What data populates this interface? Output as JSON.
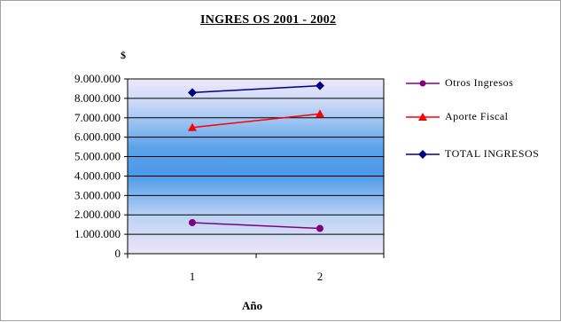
{
  "chart_data": {
    "type": "line",
    "title": "INGRES OS  2001 - 2002",
    "xlabel": "Año",
    "ylabel": "$",
    "categories": [
      "1",
      "2"
    ],
    "y_tick_labels": [
      "0",
      "1.000.000",
      "2.000.000",
      "3.000.000",
      "4.000.000",
      "5.000.000",
      "6.000.000",
      "7.000.000",
      "8.000.000",
      "9.000.000"
    ],
    "ylim": [
      0,
      9000000
    ],
    "y_tick_step": 1000000,
    "grid": true,
    "legend_position": "right",
    "series": [
      {
        "name": "Otros Ingresos",
        "values": [
          1600000,
          1300000
        ],
        "color": "#800080",
        "marker": "circle"
      },
      {
        "name": "Aporte Fiscal",
        "values": [
          6500000,
          7200000
        ],
        "color": "#ff0000",
        "marker": "triangle"
      },
      {
        "name": "TOTAL INGRESOS",
        "values": [
          8300000,
          8650000
        ],
        "color": "#000080",
        "marker": "diamond"
      }
    ]
  }
}
